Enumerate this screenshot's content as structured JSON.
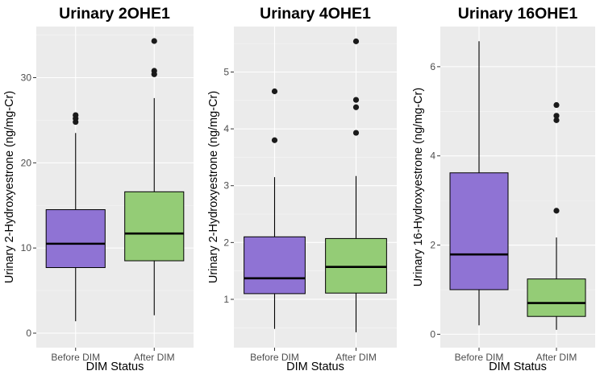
{
  "figure": {
    "shared_xlabel": "DIM Status",
    "categories": [
      "Before DIM",
      "After DIM"
    ],
    "colors": {
      "Before DIM": "#8f73d4",
      "After DIM": "#94cc76"
    }
  },
  "chart_data": [
    {
      "type": "boxplot",
      "title": "Urinary 2OHE1",
      "xlabel": "DIM Status",
      "ylabel": "Urinary 2-Hydroxyestrone (ng/mg-Cr)",
      "categories": [
        "Before DIM",
        "After DIM"
      ],
      "ylim": [
        -1.7,
        36
      ],
      "yticks": [
        0,
        10,
        20,
        30
      ],
      "boxes": [
        {
          "category": "Before DIM",
          "min": 1.4,
          "q1": 7.7,
          "median": 10.5,
          "q3": 14.5,
          "max": 23.5,
          "outliers": [
            24.8,
            25.2,
            25.6
          ]
        },
        {
          "category": "After DIM",
          "min": 2.1,
          "q1": 8.5,
          "median": 11.7,
          "q3": 16.6,
          "max": 27.6,
          "outliers": [
            30.4,
            30.8,
            34.3
          ]
        }
      ]
    },
    {
      "type": "boxplot",
      "title": "Urinary 4OHE1",
      "xlabel": "DIM Status",
      "ylabel": "Urinary 2-Hydroxyestrone (ng/mg-Cr)",
      "categories": [
        "Before DIM",
        "After DIM"
      ],
      "ylim": [
        0.15,
        5.8
      ],
      "yticks": [
        1,
        2,
        3,
        4,
        5
      ],
      "boxes": [
        {
          "category": "Before DIM",
          "min": 0.48,
          "q1": 1.1,
          "median": 1.37,
          "q3": 2.1,
          "max": 3.15,
          "outliers": [
            3.8,
            4.66
          ]
        },
        {
          "category": "After DIM",
          "min": 0.42,
          "q1": 1.11,
          "median": 1.57,
          "q3": 2.07,
          "max": 3.17,
          "outliers": [
            3.93,
            4.38,
            4.51,
            5.54
          ]
        }
      ]
    },
    {
      "type": "boxplot",
      "title": "Urinary 16OHE1",
      "xlabel": "DIM Status",
      "ylabel": "Urinary 16-Hydroxyestrone (ng/mg-Cr)",
      "categories": [
        "Before DIM",
        "After DIM"
      ],
      "ylim": [
        -0.3,
        6.9
      ],
      "yticks": [
        0,
        2,
        4,
        6
      ],
      "boxes": [
        {
          "category": "Before DIM",
          "min": 0.2,
          "q1": 1.0,
          "median": 1.79,
          "q3": 3.62,
          "max": 6.57,
          "outliers": []
        },
        {
          "category": "After DIM",
          "min": 0.1,
          "q1": 0.4,
          "median": 0.7,
          "q3": 1.24,
          "max": 2.17,
          "outliers": [
            2.77,
            4.8,
            4.9,
            5.14
          ]
        }
      ]
    }
  ]
}
